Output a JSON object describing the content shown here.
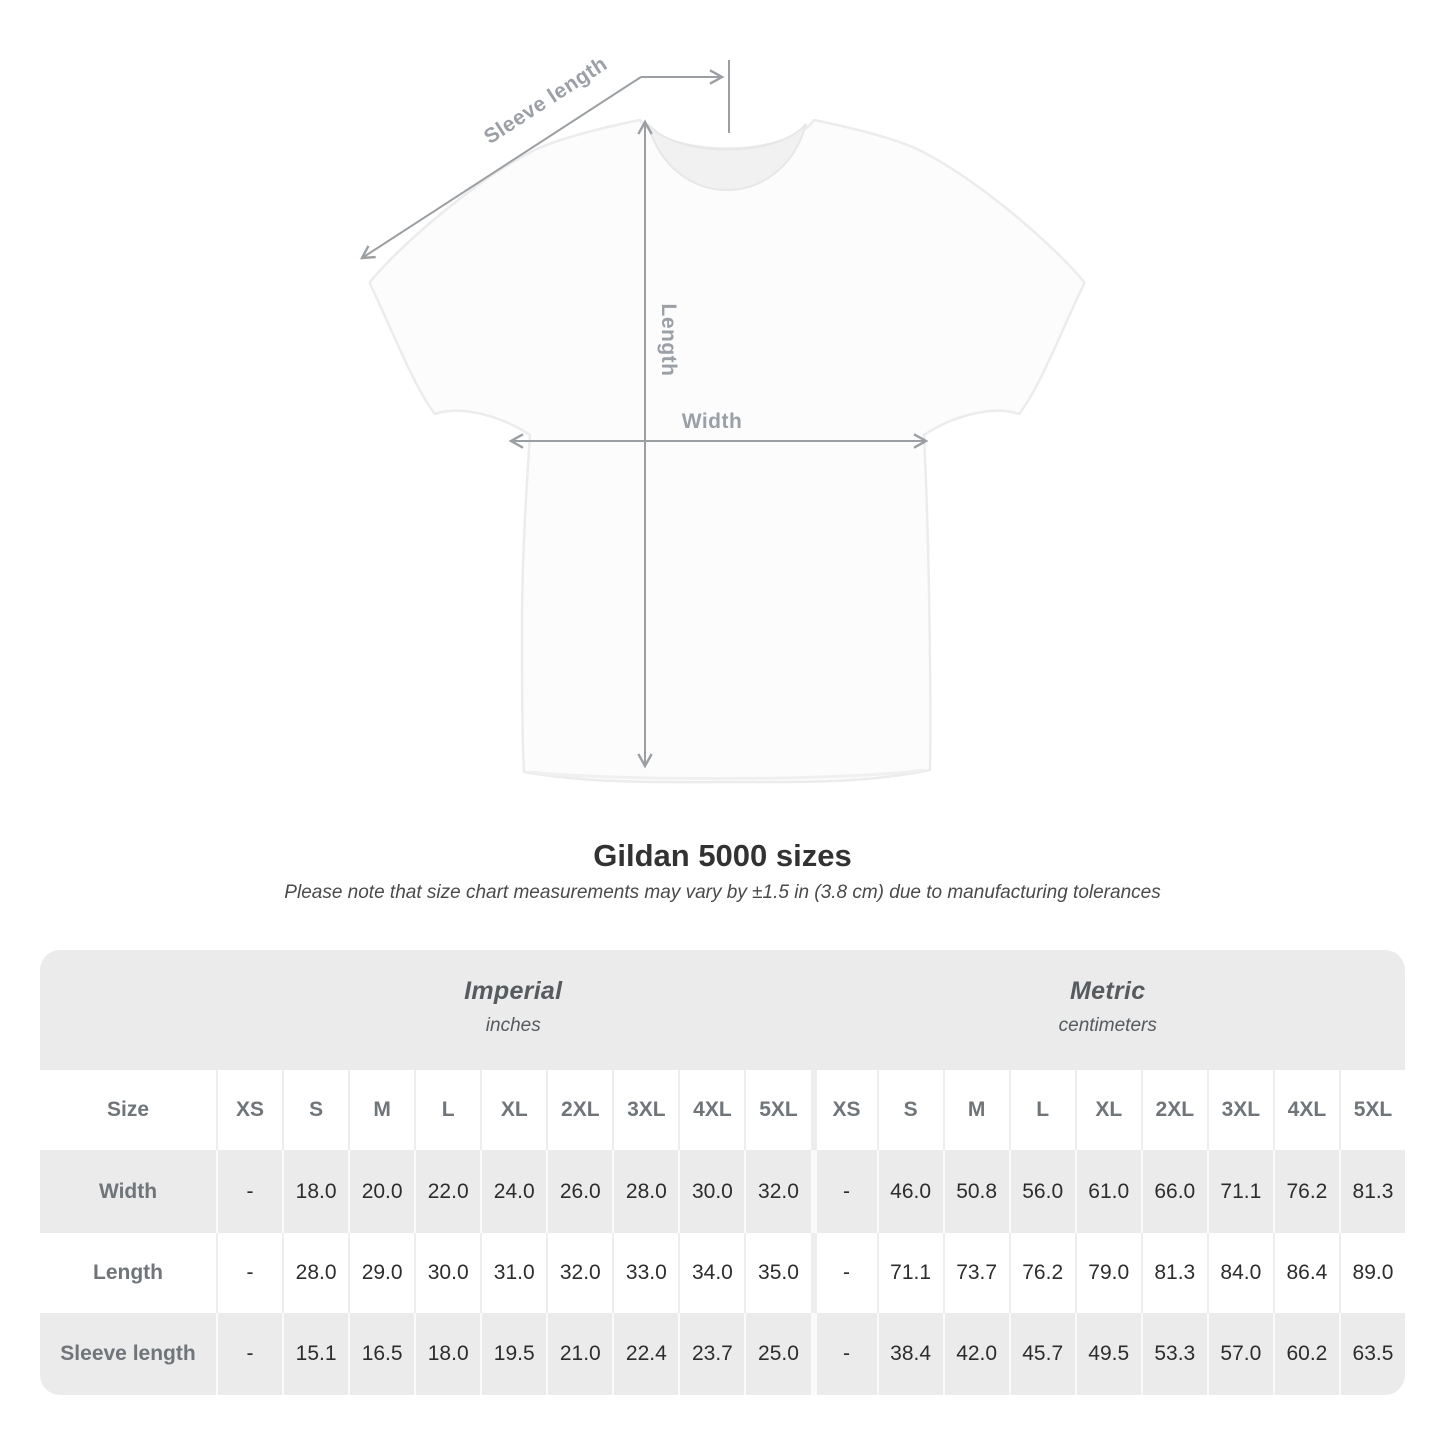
{
  "diagram": {
    "labels": {
      "sleeve_length": "Sleeve length",
      "length": "Length",
      "width": "Width"
    },
    "line_color": "#9b9fa3",
    "shirt_fill": "#fcfcfc",
    "shirt_outline": "#ececec"
  },
  "title": "Gildan 5000 sizes",
  "note": "Please note that size chart measurements may vary by ±1.5 in (3.8 cm) due to manufacturing tolerances",
  "table": {
    "size_header": "Size",
    "unit_groups": [
      {
        "label": "Imperial",
        "sublabel": "inches"
      },
      {
        "label": "Metric",
        "sublabel": "centimeters"
      }
    ],
    "sizes": [
      "XS",
      "S",
      "M",
      "L",
      "XL",
      "2XL",
      "3XL",
      "4XL",
      "5XL"
    ],
    "rows": [
      {
        "label": "Width",
        "imperial": [
          "-",
          "18.0",
          "20.0",
          "22.0",
          "24.0",
          "26.0",
          "28.0",
          "30.0",
          "32.0"
        ],
        "metric": [
          "-",
          "46.0",
          "50.8",
          "56.0",
          "61.0",
          "66.0",
          "71.1",
          "76.2",
          "81.3"
        ]
      },
      {
        "label": "Length",
        "imperial": [
          "-",
          "28.0",
          "29.0",
          "30.0",
          "31.0",
          "32.0",
          "33.0",
          "34.0",
          "35.0"
        ],
        "metric": [
          "-",
          "71.1",
          "73.7",
          "76.2",
          "79.0",
          "81.3",
          "84.0",
          "86.4",
          "89.0"
        ]
      },
      {
        "label": "Sleeve length",
        "imperial": [
          "-",
          "15.1",
          "16.5",
          "18.0",
          "19.5",
          "21.0",
          "22.4",
          "23.7",
          "25.0"
        ],
        "metric": [
          "-",
          "38.4",
          "42.0",
          "45.7",
          "49.5",
          "53.3",
          "57.0",
          "60.2",
          "63.5"
        ]
      }
    ]
  },
  "colors": {
    "row_gray": "#ebebeb",
    "row_white": "#ffffff",
    "header_text": "#70757a",
    "value_text": "#2d2d2d",
    "band_text": "#565b5f"
  }
}
